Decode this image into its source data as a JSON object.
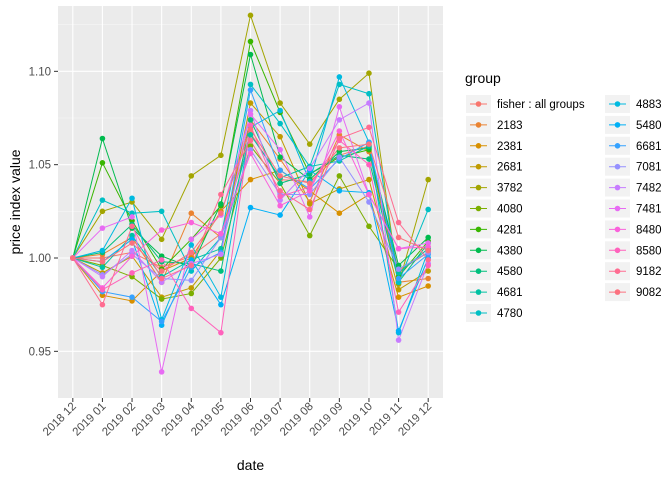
{
  "chart_data": {
    "type": "line",
    "title": "",
    "xlabel": "date",
    "ylabel": "price index value",
    "categories": [
      "2018 12",
      "2019 01",
      "2019 02",
      "2019 03",
      "2019 04",
      "2019 05",
      "2019 06",
      "2019 07",
      "2019 08",
      "2019 09",
      "2019 10",
      "2019 11",
      "2019 12"
    ],
    "ylim": [
      0.925,
      1.135
    ],
    "yticks": [
      0.95,
      1.0,
      1.05,
      1.1
    ],
    "ytick_labels": [
      "0.95",
      "1.00",
      "1.05",
      "1.10"
    ],
    "grid": true,
    "legend": {
      "title": "group",
      "position": "right",
      "columns": 2
    },
    "series": [
      {
        "name": "fisher : all groups",
        "color": "#F8766D",
        "values": [
          1.0,
          1.0,
          1.003,
          0.995,
          1.001,
          1.013,
          1.067,
          1.042,
          1.041,
          1.055,
          1.06,
          0.993,
          1.003
        ]
      },
      {
        "name": "2183",
        "color": "#EA8331",
        "values": [
          1.0,
          1.002,
          1.011,
          0.987,
          1.024,
          1.011,
          1.074,
          1.053,
          1.03,
          1.066,
          1.057,
          0.987,
          0.989
        ]
      },
      {
        "name": "2381",
        "color": "#D89000",
        "values": [
          1.0,
          0.98,
          0.977,
          0.993,
          1.0,
          1.025,
          1.042,
          1.047,
          1.036,
          1.024,
          1.034,
          0.979,
          0.985
        ]
      },
      {
        "name": "2681",
        "color": "#C09B00",
        "values": [
          1.0,
          0.992,
          1.001,
          0.979,
          0.984,
          1.004,
          1.083,
          1.065,
          1.029,
          1.037,
          1.042,
          0.983,
          0.993
        ]
      },
      {
        "name": "3782",
        "color": "#A3A500",
        "values": [
          1.0,
          1.025,
          1.03,
          1.01,
          1.044,
          1.055,
          1.13,
          1.083,
          1.061,
          1.085,
          1.099,
          0.986,
          1.042
        ]
      },
      {
        "name": "4080",
        "color": "#7CAE00",
        "values": [
          1.0,
          0.996,
          0.99,
          0.978,
          0.981,
          1.0,
          1.06,
          1.04,
          1.012,
          1.044,
          1.017,
          0.994,
          1.003
        ]
      },
      {
        "name": "4281",
        "color": "#39B600",
        "values": [
          1.0,
          1.051,
          1.02,
          0.994,
          1.01,
          1.028,
          1.116,
          1.078,
          1.045,
          1.054,
          1.058,
          0.99,
          1.009
        ]
      },
      {
        "name": "4380",
        "color": "#00BB4E",
        "values": [
          1.0,
          1.064,
          1.016,
          1.001,
          0.995,
          1.029,
          1.109,
          1.054,
          1.042,
          1.057,
          1.059,
          0.996,
          1.011
        ]
      },
      {
        "name": "4580",
        "color": "#00BF7D",
        "values": [
          1.0,
          1.003,
          1.018,
          0.998,
          0.997,
          0.993,
          1.074,
          1.04,
          1.045,
          1.055,
          1.053,
          0.987,
          1.008
        ]
      },
      {
        "name": "4681",
        "color": "#00C1A3",
        "values": [
          1.0,
          0.995,
          1.012,
          0.99,
          0.999,
          1.005,
          1.066,
          1.043,
          1.049,
          1.052,
          1.06,
          0.992,
          1.005
        ]
      },
      {
        "name": "4780",
        "color": "#00BFC4",
        "values": [
          1.0,
          1.031,
          1.024,
          1.025,
          0.993,
          1.011,
          1.093,
          1.072,
          1.049,
          1.093,
          1.088,
          0.987,
          1.026
        ]
      },
      {
        "name": "4883",
        "color": "#00BAE0",
        "values": [
          1.0,
          1.004,
          1.032,
          0.967,
          1.007,
          0.979,
          1.07,
          1.079,
          1.041,
          1.097,
          1.062,
          0.96,
          1.004
        ]
      },
      {
        "name": "5480",
        "color": "#00B0F6",
        "values": [
          1.0,
          0.998,
          1.01,
          0.964,
          0.999,
          0.975,
          1.027,
          1.023,
          1.047,
          1.036,
          1.035,
          0.961,
          1.0
        ]
      },
      {
        "name": "6681",
        "color": "#35A2FF",
        "values": [
          1.0,
          0.982,
          0.979,
          0.966,
          0.995,
          1.003,
          1.09,
          1.047,
          1.037,
          1.053,
          1.062,
          0.989,
          1.002
        ]
      },
      {
        "name": "7081",
        "color": "#9590FF",
        "values": [
          1.0,
          0.991,
          1.002,
          0.989,
          0.988,
          1.011,
          1.058,
          1.034,
          1.034,
          1.054,
          1.03,
          0.994,
          1.003
        ]
      },
      {
        "name": "7482",
        "color": "#C77CFF",
        "values": [
          1.0,
          0.99,
          1.004,
          0.987,
          0.997,
          1.002,
          1.079,
          1.031,
          1.048,
          1.074,
          1.083,
          0.956,
          0.997
        ]
      },
      {
        "name": "7481",
        "color": "#E76BF3",
        "values": [
          1.0,
          1.016,
          1.022,
          0.939,
          1.01,
          1.023,
          1.077,
          1.058,
          1.022,
          1.081,
          1.034,
          1.005,
          1.008
        ]
      },
      {
        "name": "8480",
        "color": "#FA62DB",
        "values": [
          1.0,
          0.984,
          1.001,
          1.015,
          1.019,
          1.013,
          1.056,
          1.028,
          1.036,
          1.068,
          1.034,
          1.005,
          1.006
        ]
      },
      {
        "name": "8580",
        "color": "#FF62BC",
        "values": [
          1.0,
          0.983,
          0.992,
          0.999,
          0.973,
          0.96,
          1.071,
          1.033,
          1.038,
          1.063,
          1.05,
          0.971,
          0.996
        ]
      },
      {
        "name": "9182",
        "color": "#FF6C91",
        "values": [
          1.0,
          0.975,
          1.017,
          0.989,
          0.996,
          1.034,
          1.063,
          1.036,
          1.026,
          1.064,
          1.07,
          1.019,
          0.999
        ]
      },
      {
        "name": "9082",
        "color": "#FC717F",
        "values": [
          1.0,
          0.998,
          1.008,
          0.993,
          1.003,
          1.024,
          1.069,
          1.044,
          1.04,
          1.059,
          1.061,
          1.011,
          1.004
        ]
      }
    ]
  }
}
